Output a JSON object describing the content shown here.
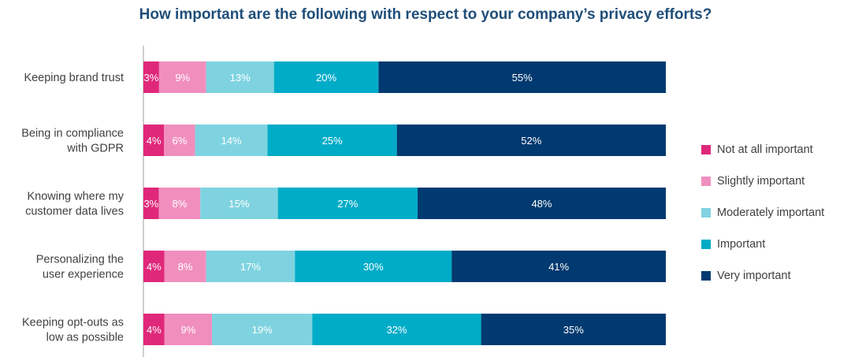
{
  "chart_data": {
    "type": "bar",
    "orientation": "horizontal",
    "stacked": true,
    "title": "How important are the following with respect to your company’s privacy efforts?",
    "categories": [
      [
        "Keeping brand trust"
      ],
      [
        "Being in compliance",
        "with GDPR"
      ],
      [
        "Knowing where my",
        "customer data lives"
      ],
      [
        "Personalizing the",
        "user experience"
      ],
      [
        "Keeping opt-outs as",
        "low as possible"
      ]
    ],
    "series": [
      {
        "name": "Not at all important",
        "color": "#e0287a",
        "values": [
          3,
          4,
          3,
          4,
          4
        ],
        "labels": [
          "3%",
          "4%",
          "3%",
          "4%",
          "4%"
        ]
      },
      {
        "name": "Slightly important",
        "color": "#f08fbe",
        "values": [
          9,
          6,
          8,
          8,
          9
        ],
        "labels": [
          "9%",
          "6%",
          "8%",
          "8%",
          "9%"
        ]
      },
      {
        "name": "Moderately important",
        "color": "#7fd3e0",
        "values": [
          13,
          14,
          15,
          17,
          19
        ],
        "labels": [
          "13%",
          "14%",
          "15%",
          "17%",
          "19%"
        ]
      },
      {
        "name": "Important",
        "color": "#00acc8",
        "values": [
          20,
          25,
          27,
          30,
          32
        ],
        "labels": [
          "20%",
          "25%",
          "27%",
          "30%",
          "32%"
        ]
      },
      {
        "name": "Very important",
        "color": "#003a70",
        "values": [
          55,
          52,
          48,
          41,
          35
        ],
        "labels": [
          "55%",
          "52%",
          "48%",
          "41%",
          "35%"
        ]
      }
    ],
    "legend_position": "right",
    "grid": false
  }
}
